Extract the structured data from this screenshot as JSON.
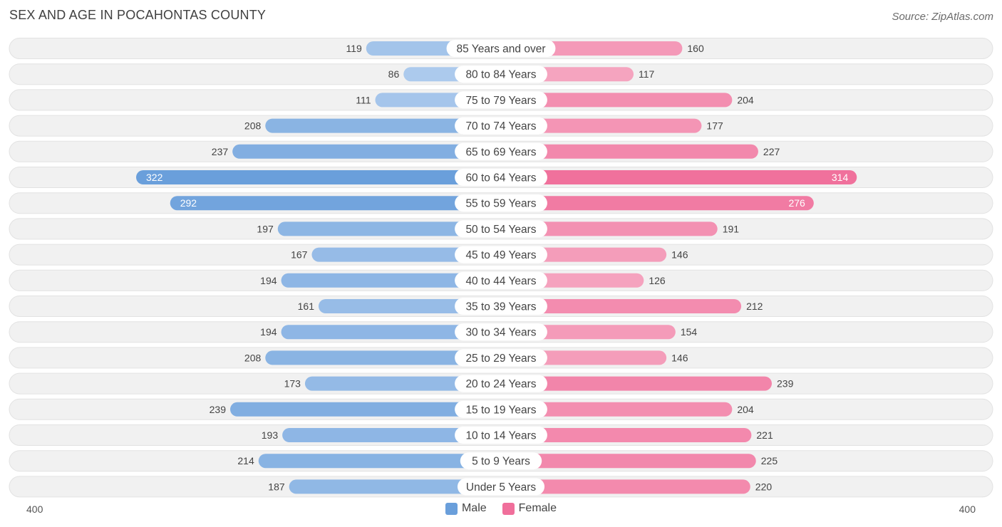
{
  "header": {
    "title": "SEX AND AGE IN POCAHONTAS COUNTY",
    "source": "Source: ZipAtlas.com"
  },
  "colors": {
    "male_light": "#aecbed",
    "male_dark": "#6a9fdb",
    "female_light": "#f6aec6",
    "female_dark": "#f06f9b",
    "row_bg": "#f1f1f1",
    "row_border": "#e2e2e2"
  },
  "chart_data": {
    "type": "bar",
    "orientation": "horizontal-diverging",
    "title": "SEX AND AGE IN POCAHONTAS COUNTY",
    "categories": [
      "85 Years and over",
      "80 to 84 Years",
      "75 to 79 Years",
      "70 to 74 Years",
      "65 to 69 Years",
      "60 to 64 Years",
      "55 to 59 Years",
      "50 to 54 Years",
      "45 to 49 Years",
      "40 to 44 Years",
      "35 to 39 Years",
      "30 to 34 Years",
      "25 to 29 Years",
      "20 to 24 Years",
      "15 to 19 Years",
      "10 to 14 Years",
      "5 to 9 Years",
      "Under 5 Years"
    ],
    "series": [
      {
        "name": "Male",
        "values": [
          119,
          86,
          111,
          208,
          237,
          322,
          292,
          197,
          167,
          194,
          161,
          194,
          208,
          173,
          239,
          193,
          214,
          187
        ]
      },
      {
        "name": "Female",
        "values": [
          160,
          117,
          204,
          177,
          227,
          314,
          276,
          191,
          146,
          126,
          212,
          154,
          146,
          239,
          204,
          221,
          225,
          220
        ]
      }
    ],
    "xlim": [
      -400,
      400
    ],
    "axis_labels": {
      "left": "400",
      "right": "400"
    },
    "legend": [
      "Male",
      "Female"
    ],
    "legend_position": "bottom-center"
  }
}
